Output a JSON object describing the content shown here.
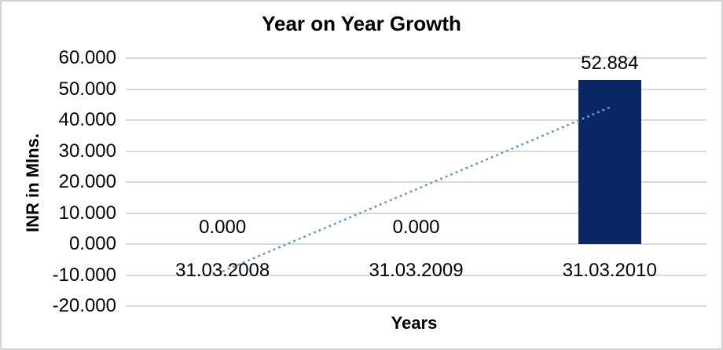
{
  "chart_data": {
    "type": "bar",
    "title": "Year on Year Growth",
    "xlabel": "Years",
    "ylabel": "INR in Mlns.",
    "categories": [
      "31.03.2008",
      "31.03.2009",
      "31.03.2010"
    ],
    "values": [
      0,
      0,
      52.884
    ],
    "value_labels": [
      "0.000",
      "0.000",
      "52.884"
    ],
    "ylim": [
      -20,
      60
    ],
    "ytick_step": 10,
    "ytick_labels": [
      "60.000",
      "50.000",
      "40.000",
      "30.000",
      "20.000",
      "10.000",
      "0.000",
      "-10.000",
      "-20.000"
    ],
    "grid": true,
    "legend": "none",
    "bar_color": "#0a2665",
    "gridline_color": "#d9d9d9",
    "border_color": "#d3d3d3",
    "trendline": {
      "type": "linear",
      "style": "dotted",
      "color": "#5b9bd5",
      "start_value": -8.8,
      "end_value": 44.1
    }
  }
}
